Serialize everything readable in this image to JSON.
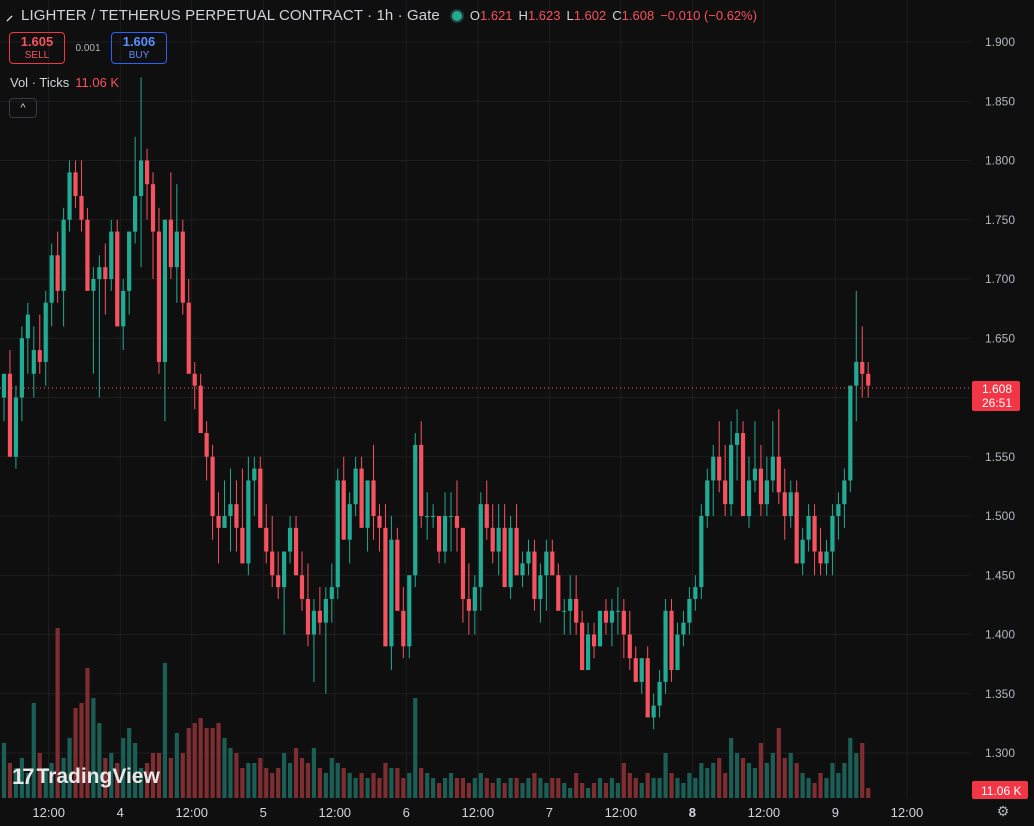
{
  "header": {
    "title": "LIGHTER / TETHERUS PERPETUAL CONTRACT · 1h · Gate",
    "ohlc": [
      {
        "k": "O",
        "v": "1.621"
      },
      {
        "k": "H",
        "v": "1.623"
      },
      {
        "k": "L",
        "v": "1.602"
      },
      {
        "k": "C",
        "v": "1.608"
      }
    ],
    "change": "−0.010 (−0.62%)"
  },
  "trade": {
    "sell_price": "1.605",
    "sell_label": "SELL",
    "spread": "0.001",
    "buy_price": "1.606",
    "buy_label": "BUY"
  },
  "volume_legend": {
    "label": "Vol · Ticks",
    "value": "11.06 K"
  },
  "collapse_glyph": "^",
  "branding": {
    "name": "TradingView"
  },
  "colors": {
    "up": "#22ab94",
    "down": "#f7525f",
    "up_vol": "#1a5e55",
    "down_vol": "#7e2d31",
    "background": "#0f0f0f",
    "grid": "#1e1e1e"
  },
  "chart_data": {
    "type": "candlestick",
    "ylim": [
      1.275,
      1.92
    ],
    "y_ticks": [
      "1.900",
      "1.850",
      "1.800",
      "1.750",
      "1.700",
      "1.650",
      "1.600",
      "1.550",
      "1.500",
      "1.450",
      "1.400",
      "1.350",
      "1.300"
    ],
    "x_ticks": [
      "12:00",
      "4",
      "12:00",
      "5",
      "12:00",
      "6",
      "12:00",
      "7",
      "12:00",
      "8",
      "12:00",
      "9",
      "12:00"
    ],
    "x_tick_index": [
      7.5,
      19.5,
      31.5,
      43.5,
      55.5,
      67.5,
      79.5,
      91.5,
      103.5,
      115.5,
      127.5,
      139.5,
      151.5
    ],
    "x_tick_bold": [
      false,
      false,
      false,
      false,
      false,
      false,
      false,
      false,
      false,
      true,
      false,
      false,
      false
    ],
    "last_price": "1.608",
    "last_price_value": 1.608,
    "countdown": "26:51",
    "volume_label": "11.06 K",
    "volume_max": 200,
    "candles": [
      [
        1.6,
        1.62,
        1.58,
        1.62,
        55
      ],
      [
        1.62,
        1.64,
        1.55,
        1.55,
        35
      ],
      [
        1.55,
        1.61,
        1.54,
        1.6,
        30
      ],
      [
        1.6,
        1.66,
        1.58,
        1.65,
        40
      ],
      [
        1.65,
        1.68,
        1.62,
        1.67,
        25
      ],
      [
        1.62,
        1.66,
        1.6,
        1.64,
        95
      ],
      [
        1.64,
        1.67,
        1.62,
        1.63,
        45
      ],
      [
        1.63,
        1.69,
        1.61,
        1.68,
        30
      ],
      [
        1.68,
        1.73,
        1.66,
        1.72,
        35
      ],
      [
        1.72,
        1.74,
        1.68,
        1.69,
        170
      ],
      [
        1.69,
        1.76,
        1.66,
        1.75,
        40
      ],
      [
        1.75,
        1.8,
        1.74,
        1.79,
        60
      ],
      [
        1.79,
        1.8,
        1.76,
        1.77,
        90
      ],
      [
        1.77,
        1.8,
        1.74,
        1.75,
        95
      ],
      [
        1.75,
        1.76,
        1.69,
        1.69,
        130
      ],
      [
        1.69,
        1.71,
        1.62,
        1.7,
        100
      ],
      [
        1.7,
        1.72,
        1.6,
        1.71,
        75
      ],
      [
        1.71,
        1.73,
        1.67,
        1.7,
        40
      ],
      [
        1.7,
        1.75,
        1.69,
        1.74,
        45
      ],
      [
        1.74,
        1.75,
        1.66,
        1.66,
        35
      ],
      [
        1.66,
        1.7,
        1.64,
        1.69,
        60
      ],
      [
        1.69,
        1.74,
        1.67,
        1.74,
        70
      ],
      [
        1.74,
        1.82,
        1.73,
        1.77,
        55
      ],
      [
        1.77,
        1.87,
        1.71,
        1.8,
        30
      ],
      [
        1.8,
        1.81,
        1.75,
        1.78,
        35
      ],
      [
        1.78,
        1.79,
        1.7,
        1.74,
        45
      ],
      [
        1.74,
        1.76,
        1.62,
        1.63,
        45
      ],
      [
        1.63,
        1.75,
        1.58,
        1.75,
        135
      ],
      [
        1.75,
        1.79,
        1.7,
        1.71,
        40
      ],
      [
        1.71,
        1.78,
        1.68,
        1.74,
        65
      ],
      [
        1.74,
        1.75,
        1.67,
        1.68,
        45
      ],
      [
        1.68,
        1.7,
        1.62,
        1.62,
        70
      ],
      [
        1.62,
        1.63,
        1.59,
        1.61,
        75
      ],
      [
        1.61,
        1.62,
        1.57,
        1.57,
        80
      ],
      [
        1.57,
        1.58,
        1.53,
        1.55,
        70
      ],
      [
        1.55,
        1.56,
        1.48,
        1.5,
        70
      ],
      [
        1.5,
        1.52,
        1.46,
        1.49,
        75
      ],
      [
        1.49,
        1.53,
        1.49,
        1.5,
        60
      ],
      [
        1.5,
        1.54,
        1.47,
        1.51,
        50
      ],
      [
        1.51,
        1.53,
        1.47,
        1.49,
        45
      ],
      [
        1.49,
        1.54,
        1.46,
        1.46,
        30
      ],
      [
        1.46,
        1.55,
        1.45,
        1.53,
        35
      ],
      [
        1.53,
        1.55,
        1.5,
        1.54,
        35
      ],
      [
        1.54,
        1.55,
        1.49,
        1.49,
        40
      ],
      [
        1.49,
        1.51,
        1.46,
        1.47,
        30
      ],
      [
        1.47,
        1.5,
        1.44,
        1.45,
        25
      ],
      [
        1.45,
        1.47,
        1.43,
        1.44,
        30
      ],
      [
        1.44,
        1.47,
        1.4,
        1.47,
        45
      ],
      [
        1.47,
        1.5,
        1.46,
        1.49,
        35
      ],
      [
        1.49,
        1.5,
        1.45,
        1.45,
        50
      ],
      [
        1.45,
        1.47,
        1.42,
        1.43,
        40
      ],
      [
        1.43,
        1.46,
        1.39,
        1.4,
        35
      ],
      [
        1.4,
        1.43,
        1.36,
        1.42,
        50
      ],
      [
        1.42,
        1.44,
        1.4,
        1.41,
        30
      ],
      [
        1.41,
        1.44,
        1.35,
        1.43,
        25
      ],
      [
        1.43,
        1.46,
        1.41,
        1.44,
        40
      ],
      [
        1.44,
        1.54,
        1.43,
        1.53,
        35
      ],
      [
        1.53,
        1.55,
        1.48,
        1.48,
        30
      ],
      [
        1.48,
        1.52,
        1.46,
        1.51,
        25
      ],
      [
        1.51,
        1.55,
        1.5,
        1.54,
        20
      ],
      [
        1.54,
        1.55,
        1.49,
        1.49,
        25
      ],
      [
        1.49,
        1.53,
        1.47,
        1.53,
        20
      ],
      [
        1.53,
        1.56,
        1.48,
        1.5,
        25
      ],
      [
        1.5,
        1.51,
        1.47,
        1.49,
        20
      ],
      [
        1.49,
        1.51,
        1.39,
        1.39,
        35
      ],
      [
        1.39,
        1.5,
        1.37,
        1.48,
        30
      ],
      [
        1.48,
        1.49,
        1.42,
        1.42,
        30
      ],
      [
        1.42,
        1.44,
        1.38,
        1.39,
        20
      ],
      [
        1.39,
        1.45,
        1.38,
        1.45,
        25
      ],
      [
        1.45,
        1.57,
        1.44,
        1.56,
        100
      ],
      [
        1.56,
        1.58,
        1.49,
        1.5,
        30
      ],
      [
        1.5,
        1.52,
        1.48,
        1.5,
        25
      ],
      [
        1.5,
        1.51,
        1.49,
        1.5,
        20
      ],
      [
        1.5,
        1.5,
        1.46,
        1.47,
        15
      ],
      [
        1.47,
        1.52,
        1.46,
        1.5,
        20
      ],
      [
        1.5,
        1.52,
        1.47,
        1.5,
        25
      ],
      [
        1.5,
        1.53,
        1.47,
        1.49,
        20
      ],
      [
        1.49,
        1.49,
        1.41,
        1.43,
        20
      ],
      [
        1.43,
        1.46,
        1.4,
        1.42,
        15
      ],
      [
        1.42,
        1.45,
        1.4,
        1.44,
        20
      ],
      [
        1.44,
        1.52,
        1.42,
        1.51,
        25
      ],
      [
        1.51,
        1.53,
        1.48,
        1.49,
        20
      ],
      [
        1.49,
        1.51,
        1.46,
        1.47,
        15
      ],
      [
        1.47,
        1.51,
        1.45,
        1.49,
        20
      ],
      [
        1.49,
        1.51,
        1.44,
        1.44,
        15
      ],
      [
        1.44,
        1.5,
        1.43,
        1.49,
        20
      ],
      [
        1.49,
        1.51,
        1.45,
        1.45,
        20
      ],
      [
        1.45,
        1.47,
        1.44,
        1.46,
        15
      ],
      [
        1.46,
        1.48,
        1.45,
        1.47,
        20
      ],
      [
        1.47,
        1.48,
        1.42,
        1.43,
        25
      ],
      [
        1.43,
        1.46,
        1.41,
        1.45,
        20
      ],
      [
        1.45,
        1.48,
        1.42,
        1.47,
        15
      ],
      [
        1.47,
        1.48,
        1.45,
        1.45,
        20
      ],
      [
        1.45,
        1.46,
        1.42,
        1.42,
        20
      ],
      [
        1.42,
        1.43,
        1.4,
        1.42,
        15
      ],
      [
        1.42,
        1.45,
        1.4,
        1.43,
        10
      ],
      [
        1.43,
        1.45,
        1.4,
        1.41,
        25
      ],
      [
        1.41,
        1.42,
        1.37,
        1.37,
        15
      ],
      [
        1.37,
        1.41,
        1.37,
        1.4,
        10
      ],
      [
        1.4,
        1.41,
        1.38,
        1.39,
        15
      ],
      [
        1.39,
        1.42,
        1.39,
        1.42,
        20
      ],
      [
        1.42,
        1.43,
        1.4,
        1.41,
        15
      ],
      [
        1.41,
        1.43,
        1.39,
        1.42,
        20
      ],
      [
        1.42,
        1.44,
        1.4,
        1.42,
        15
      ],
      [
        1.42,
        1.43,
        1.38,
        1.4,
        35
      ],
      [
        1.4,
        1.42,
        1.37,
        1.38,
        25
      ],
      [
        1.38,
        1.39,
        1.36,
        1.36,
        20
      ],
      [
        1.36,
        1.38,
        1.35,
        1.38,
        15
      ],
      [
        1.38,
        1.39,
        1.33,
        1.33,
        25
      ],
      [
        1.33,
        1.35,
        1.32,
        1.34,
        20
      ],
      [
        1.34,
        1.37,
        1.33,
        1.36,
        20
      ],
      [
        1.36,
        1.43,
        1.35,
        1.42,
        45
      ],
      [
        1.42,
        1.43,
        1.36,
        1.37,
        25
      ],
      [
        1.37,
        1.41,
        1.37,
        1.4,
        20
      ],
      [
        1.4,
        1.42,
        1.39,
        1.41,
        15
      ],
      [
        1.41,
        1.44,
        1.4,
        1.43,
        25
      ],
      [
        1.43,
        1.45,
        1.42,
        1.44,
        20
      ],
      [
        1.44,
        1.51,
        1.43,
        1.5,
        35
      ],
      [
        1.5,
        1.54,
        1.49,
        1.53,
        30
      ],
      [
        1.53,
        1.56,
        1.5,
        1.55,
        35
      ],
      [
        1.55,
        1.58,
        1.52,
        1.53,
        40
      ],
      [
        1.53,
        1.56,
        1.5,
        1.51,
        25
      ],
      [
        1.51,
        1.58,
        1.5,
        1.56,
        60
      ],
      [
        1.56,
        1.59,
        1.53,
        1.57,
        45
      ],
      [
        1.57,
        1.58,
        1.5,
        1.5,
        40
      ],
      [
        1.5,
        1.55,
        1.49,
        1.53,
        35
      ],
      [
        1.53,
        1.58,
        1.52,
        1.54,
        30
      ],
      [
        1.54,
        1.56,
        1.5,
        1.51,
        55
      ],
      [
        1.51,
        1.55,
        1.5,
        1.53,
        35
      ],
      [
        1.53,
        1.58,
        1.52,
        1.55,
        45
      ],
      [
        1.55,
        1.59,
        1.51,
        1.52,
        70
      ],
      [
        1.52,
        1.54,
        1.48,
        1.5,
        40
      ],
      [
        1.5,
        1.53,
        1.49,
        1.52,
        45
      ],
      [
        1.52,
        1.53,
        1.46,
        1.46,
        35
      ],
      [
        1.46,
        1.49,
        1.45,
        1.48,
        25
      ],
      [
        1.48,
        1.51,
        1.47,
        1.5,
        20
      ],
      [
        1.5,
        1.51,
        1.45,
        1.47,
        15
      ],
      [
        1.47,
        1.49,
        1.45,
        1.46,
        25
      ],
      [
        1.46,
        1.48,
        1.45,
        1.47,
        20
      ],
      [
        1.47,
        1.51,
        1.45,
        1.5,
        35
      ],
      [
        1.5,
        1.52,
        1.48,
        1.51,
        25
      ],
      [
        1.51,
        1.54,
        1.49,
        1.53,
        35
      ],
      [
        1.53,
        1.61,
        1.52,
        1.61,
        60
      ],
      [
        1.61,
        1.69,
        1.58,
        1.63,
        45
      ],
      [
        1.63,
        1.66,
        1.6,
        1.62,
        55
      ],
      [
        1.62,
        1.63,
        1.6,
        1.61,
        10
      ]
    ]
  }
}
